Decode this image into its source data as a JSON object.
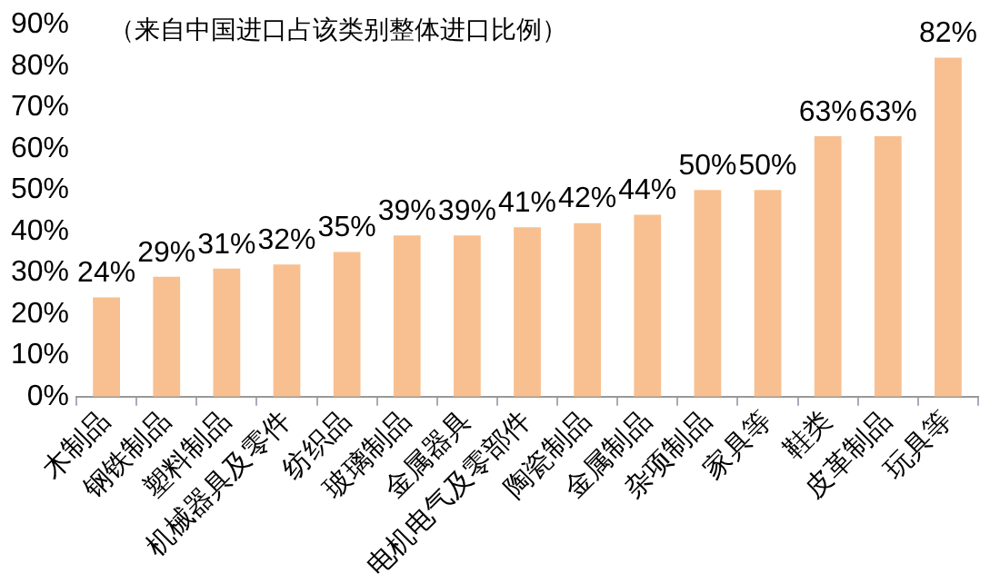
{
  "chart_data": {
    "type": "bar",
    "annotations": [
      "（来自中国进口占该类别整体进口比例）"
    ],
    "categories": [
      "木制品",
      "钢铁制品",
      "塑料制品",
      "机械器具及零件",
      "纺织品",
      "玻璃制品",
      "金属器具",
      "电机电气及零部件",
      "陶瓷制品",
      "金属制品",
      "杂项制品",
      "家具等",
      "鞋类",
      "皮革制品",
      "玩具等"
    ],
    "values": [
      24,
      29,
      31,
      32,
      35,
      39,
      39,
      41,
      42,
      44,
      50,
      50,
      63,
      63,
      82
    ],
    "color": "#f8c090",
    "value_labels": [
      "24%",
      "29%",
      "31%",
      "32%",
      "35%",
      "39%",
      "39%",
      "41%",
      "42%",
      "44%",
      "50%",
      "50%",
      "63%",
      "63%",
      "82%"
    ],
    "ylim": [
      0,
      90
    ],
    "yticks": [
      {
        "value": 0,
        "label": "0%"
      },
      {
        "value": 10,
        "label": "10%"
      },
      {
        "value": 20,
        "label": "20%"
      },
      {
        "value": 30,
        "label": "30%"
      },
      {
        "value": 40,
        "label": "40%"
      },
      {
        "value": 50,
        "label": "50%"
      },
      {
        "value": 60,
        "label": "60%"
      },
      {
        "value": 70,
        "label": "70%"
      },
      {
        "value": 80,
        "label": "80%"
      },
      {
        "value": 90,
        "label": "90%"
      }
    ],
    "grid": false,
    "legend": false
  }
}
